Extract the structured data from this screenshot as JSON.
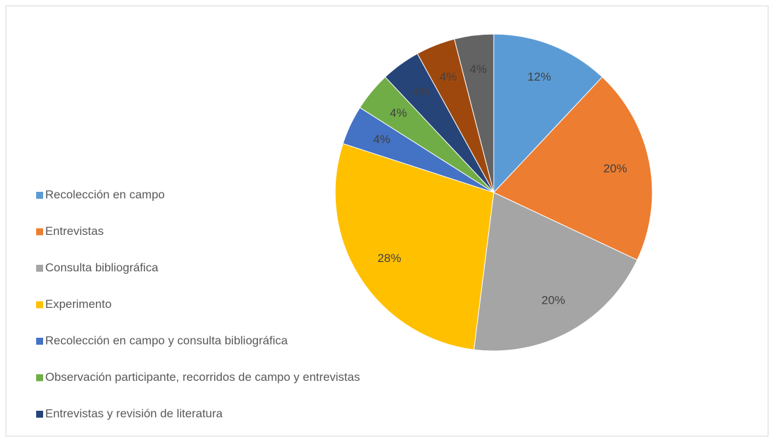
{
  "chart_data": {
    "type": "pie",
    "categories": [
      "Recolección en campo",
      "Entrevistas",
      "Consulta bibliográfica",
      "Experimento",
      "Recolección en campo y consulta bibliográfica",
      "Observación participante, recorridos de campo y entrevistas",
      "Entrevistas y revisión de literatura",
      null,
      null
    ],
    "values": [
      12,
      20,
      20,
      28,
      4,
      4,
      4,
      4,
      4
    ],
    "value_labels": [
      "12%",
      "20%",
      "20%",
      "28%",
      "4%",
      "4%",
      "4%",
      "4%",
      "4%"
    ],
    "colors": [
      "#5b9bd5",
      "#ed7d31",
      "#a5a5a5",
      "#ffc000",
      "#4472c4",
      "#70ad47",
      "#264478",
      "#9e480e",
      "#636363"
    ],
    "legend": "left"
  }
}
